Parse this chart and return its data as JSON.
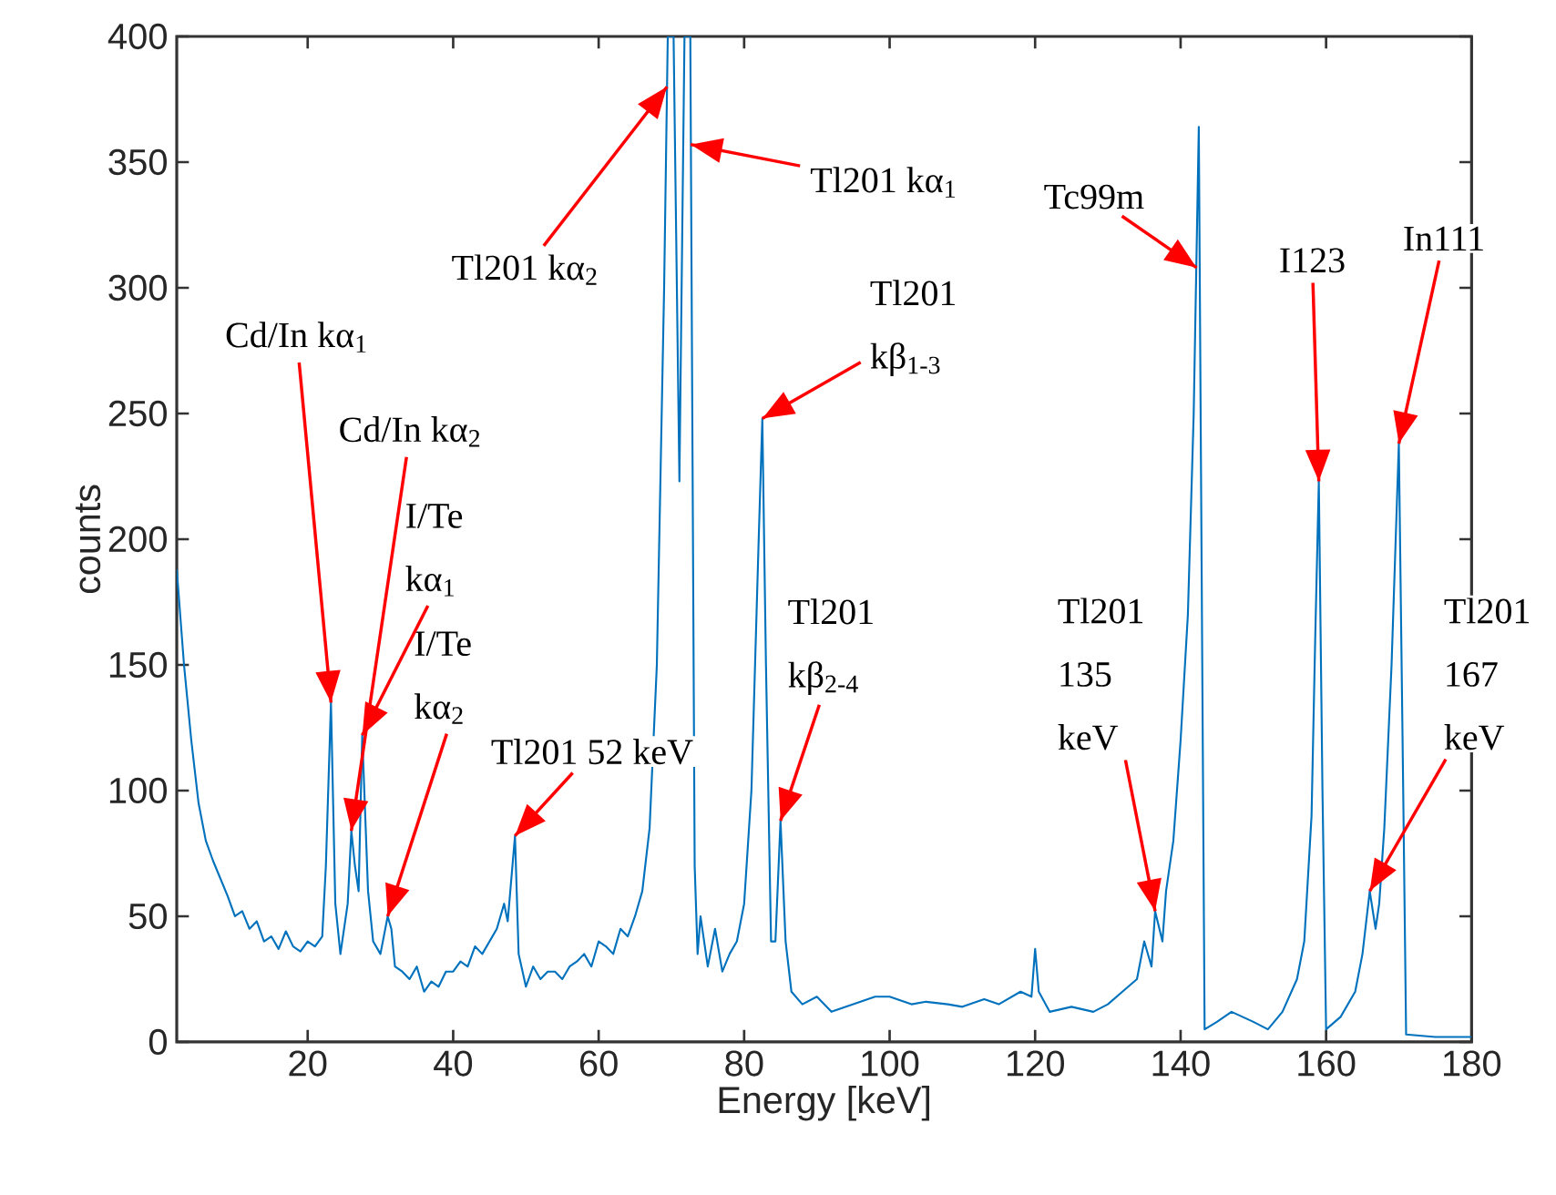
{
  "chart_data": {
    "type": "line",
    "xlabel": "Energy [keV]",
    "ylabel": "counts",
    "xlim": [
      2,
      180
    ],
    "ylim": [
      0,
      400
    ],
    "xticks": [
      20,
      40,
      60,
      80,
      100,
      120,
      140,
      160,
      180
    ],
    "yticks": [
      0,
      50,
      100,
      150,
      200,
      250,
      300,
      350,
      400
    ],
    "grid": false,
    "marker": "none",
    "line_style": "solid",
    "series": [
      {
        "color": "#0072bd",
        "x": [
          2,
          3,
          4,
          5,
          6,
          7,
          8,
          9,
          10,
          11,
          12,
          13,
          14,
          15,
          16,
          17,
          18,
          19,
          20,
          21,
          22,
          22.5,
          23.2,
          23.8,
          24.5,
          25.5,
          26,
          26.5,
          27,
          27.5,
          28.3,
          29,
          30,
          31,
          31.5,
          32,
          33,
          34,
          35,
          36,
          37,
          38,
          39,
          40,
          41,
          42,
          43,
          44,
          45,
          46,
          47,
          47.5,
          48.5,
          49,
          50,
          51,
          52,
          53,
          54,
          55,
          56,
          57,
          58,
          59,
          60,
          61,
          62,
          63,
          64,
          65,
          66,
          67,
          68,
          69,
          69.5,
          70.3,
          71.1,
          71.8,
          72.6,
          73.2,
          73.6,
          74,
          75,
          76,
          77,
          78,
          79,
          80,
          81,
          82,
          82.5,
          83,
          83.7,
          84.3,
          85,
          85.7,
          86.5,
          88,
          90,
          92,
          95,
          98,
          100,
          103,
          105,
          108,
          110,
          113,
          115,
          118,
          119.5,
          120,
          120.5,
          122,
          125,
          128,
          130,
          132,
          134,
          135,
          136,
          136.5,
          137.5,
          138,
          139,
          140,
          141,
          141.8,
          142.5,
          143.3,
          145,
          147,
          150,
          152,
          154,
          156,
          157,
          158,
          158.5,
          159,
          159.5,
          160,
          162,
          164,
          165,
          166,
          166.8,
          167.3,
          168,
          169,
          170,
          170.6,
          171,
          175,
          180
        ],
        "values": [
          188,
          150,
          120,
          95,
          80,
          72,
          65,
          58,
          50,
          52,
          45,
          48,
          40,
          42,
          37,
          44,
          38,
          36,
          40,
          38,
          42,
          70,
          135,
          55,
          35,
          55,
          84,
          70,
          60,
          122,
          60,
          40,
          35,
          50,
          45,
          30,
          28,
          25,
          30,
          20,
          24,
          22,
          28,
          28,
          32,
          30,
          38,
          35,
          40,
          45,
          55,
          48,
          82,
          35,
          22,
          30,
          25,
          28,
          28,
          25,
          30,
          32,
          35,
          30,
          40,
          38,
          35,
          45,
          42,
          50,
          60,
          85,
          150,
          300,
          400,
          400,
          223,
          400,
          400,
          70,
          35,
          50,
          30,
          45,
          28,
          35,
          40,
          55,
          100,
          200,
          248,
          150,
          40,
          40,
          88,
          40,
          20,
          15,
          18,
          12,
          15,
          18,
          18,
          15,
          16,
          15,
          14,
          17,
          15,
          20,
          18,
          37,
          20,
          12,
          14,
          12,
          15,
          20,
          25,
          40,
          30,
          52,
          40,
          60,
          80,
          120,
          170,
          250,
          364,
          5,
          8,
          12,
          8,
          5,
          12,
          25,
          40,
          90,
          160,
          223,
          100,
          5,
          10,
          20,
          35,
          60,
          45,
          55,
          85,
          150,
          238,
          100,
          3,
          2,
          2
        ]
      }
    ],
    "annotations": [
      {
        "text": "Cd/In kα$_{1}$",
        "x": 23.2,
        "y": 135
      },
      {
        "text": "Cd/In kα$_{2}$",
        "x": 26,
        "y": 84
      },
      {
        "text": "I/Te kα$_{1}$",
        "x": 27.5,
        "y": 122
      },
      {
        "text": "I/Te kα$_{2}$",
        "x": 31,
        "y": 50
      },
      {
        "text": "Tl201 52 keV",
        "x": 48.5,
        "y": 82
      },
      {
        "text": "Tl201 kα$_{2}$",
        "x": 69.4,
        "y": 380
      },
      {
        "text": "Tl201 kα$_{1}$",
        "x": 72.65,
        "y": 357
      },
      {
        "text": "Tl201 kβ$_{1-3}$",
        "x": 82.5,
        "y": 248
      },
      {
        "text": "Tl201 kβ$_{2-4}$",
        "x": 85,
        "y": 88
      },
      {
        "text": "Tl201 135 keV",
        "x": 136.5,
        "y": 52
      },
      {
        "text": "Tc99m",
        "x": 142.2,
        "y": 308
      },
      {
        "text": "I123",
        "x": 159,
        "y": 223
      },
      {
        "text": "In111",
        "x": 170,
        "y": 238
      },
      {
        "text": "Tl201 167 keV",
        "x": 166,
        "y": 60
      }
    ]
  }
}
